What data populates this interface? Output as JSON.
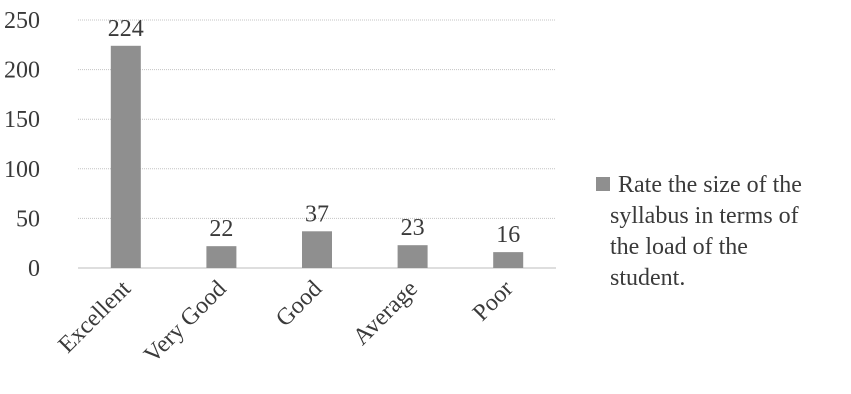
{
  "chart_data": {
    "type": "bar",
    "categories": [
      "Excellent",
      "Very Good",
      "Good",
      "Average",
      "Poor"
    ],
    "series": [
      {
        "name": "Rate the size of the syllabus in terms of the load of the student.",
        "values": [
          224,
          22,
          37,
          23,
          16
        ],
        "color": "#8f8f8f"
      }
    ],
    "data_labels": [
      "224",
      "22",
      "37",
      "23",
      "16"
    ],
    "ylim": [
      0,
      250
    ],
    "yticks": [
      0,
      50,
      100,
      150,
      200,
      250
    ],
    "ytick_labels": [
      "0",
      "50",
      "100",
      "150",
      "200",
      "250"
    ],
    "grid": true,
    "legend_position": "right",
    "legend_lines": [
      "Rate the size of the",
      "syllabus in terms of",
      "the load of the",
      "student."
    ],
    "title": "",
    "xlabel": "",
    "ylabel": ""
  }
}
